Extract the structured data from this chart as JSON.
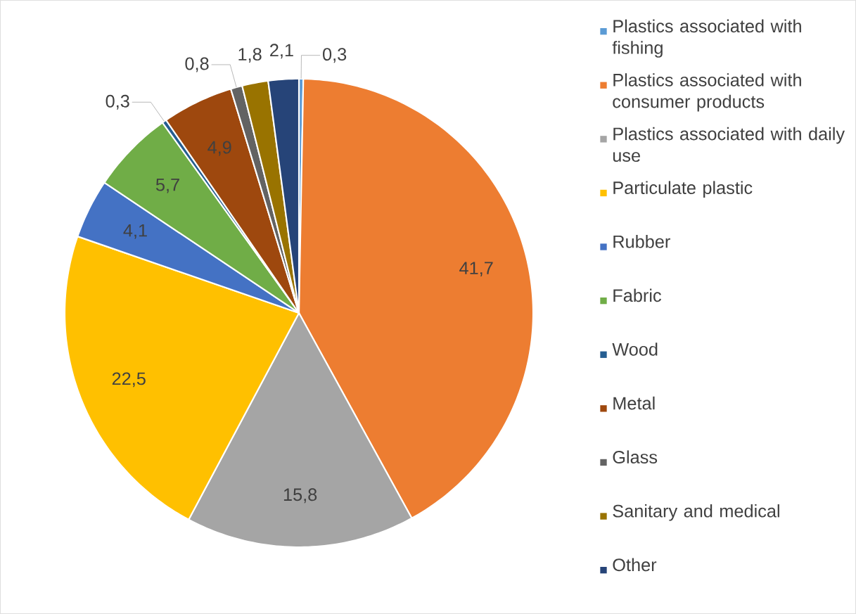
{
  "chart_data": {
    "type": "pie",
    "categories": [
      "Plastics associated with fishing",
      "Plastics associated with consumer products",
      "Plastics associated with daily use",
      "Particulate plastic",
      "Rubber",
      "Fabric",
      "Wood",
      "Metal",
      "Glass",
      "Sanitary and medical",
      "Other"
    ],
    "values": [
      0.3,
      41.7,
      15.8,
      22.5,
      4.1,
      5.7,
      0.3,
      4.9,
      0.8,
      1.8,
      2.1
    ],
    "colors": [
      "#5b9bd5",
      "#ed7d31",
      "#a5a5a5",
      "#ffc000",
      "#4472c4",
      "#70ad47",
      "#255e91",
      "#9e480e",
      "#636363",
      "#997300",
      "#264478"
    ],
    "value_labels": [
      "0,3",
      "41,7",
      "15,8",
      "22,5",
      "4,1",
      "5,7",
      "0,3",
      "4,9",
      "0,8",
      "1,8",
      "2,1"
    ],
    "legend": "right"
  }
}
